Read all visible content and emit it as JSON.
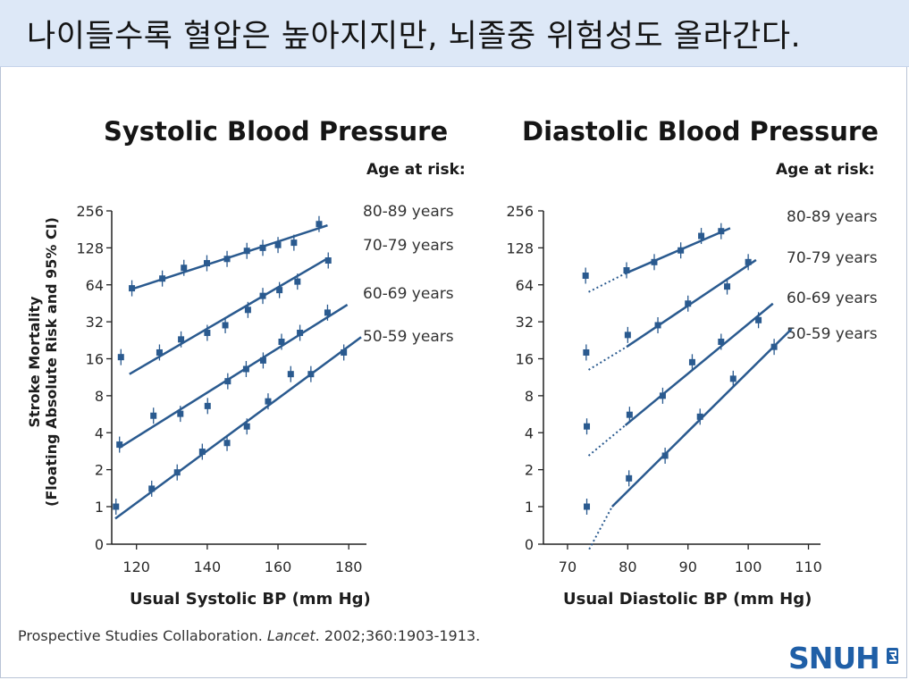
{
  "header": {
    "title": "나이들수록 혈압은 높아지지만, 뇌졸중 위험성도 올라간다."
  },
  "y_axis_label_line1": "Stroke Mortality",
  "y_axis_label_line2": "(Floating Absolute Risk and 95% CI)",
  "citation": {
    "pre": "Prospective Studies Collaboration. ",
    "journal": "Lancet",
    "post": ". 2002;360:1903-1913."
  },
  "logo": {
    "text": "SNUH"
  },
  "colors": {
    "series": "#2a5a8f",
    "header_bg": "#dde8f7"
  },
  "chart_data": [
    {
      "type": "line",
      "title": "Systolic Blood Pressure",
      "xlabel": "Usual Systolic BP (mm Hg)",
      "ylabel": "Stroke Mortality (Floating Absolute Risk and 95% CI)",
      "legend_title": "Age at risk:",
      "x_ticks": [
        120,
        140,
        160,
        180
      ],
      "xlim": [
        113,
        185
      ],
      "y_ticks": [
        0,
        1,
        2,
        4,
        8,
        16,
        32,
        64,
        128,
        256
      ],
      "y_scale": "log2",
      "series": [
        {
          "name": "80-89 years",
          "points": [
            [
              118.7,
              60
            ],
            [
              127.3,
              72
            ],
            [
              133.4,
              88
            ],
            [
              139.9,
              96
            ],
            [
              145.6,
              104
            ],
            [
              151.2,
              121
            ],
            [
              155.7,
              128
            ],
            [
              160.0,
              135
            ],
            [
              164.5,
              141
            ],
            [
              171.6,
              200
            ]
          ],
          "fit": [
            [
              118.7,
              59
            ],
            [
              174,
              195
            ]
          ]
        },
        {
          "name": "70-79 years",
          "points": [
            [
              115.6,
              16.5
            ],
            [
              126.5,
              18
            ],
            [
              132.6,
              23
            ],
            [
              140.0,
              26
            ],
            [
              145.1,
              30
            ],
            [
              151.5,
              40
            ],
            [
              155.7,
              52
            ],
            [
              160.4,
              58
            ],
            [
              165.5,
              68
            ],
            [
              174.2,
              101
            ]
          ],
          "fit": [
            [
              118,
              12
            ],
            [
              174,
              105
            ]
          ]
        },
        {
          "name": "60-69 years",
          "points": [
            [
              115.2,
              3.2
            ],
            [
              124.8,
              5.5
            ],
            [
              132.4,
              5.7
            ],
            [
              140.1,
              6.6
            ],
            [
              145.8,
              10.5
            ],
            [
              151.0,
              13.2
            ],
            [
              155.8,
              15.5
            ],
            [
              161.0,
              22
            ],
            [
              166.2,
              26
            ],
            [
              174.0,
              38
            ]
          ],
          "fit": [
            [
              115,
              3
            ],
            [
              179.6,
              44
            ]
          ]
        },
        {
          "name": "50-59 years",
          "points": [
            [
              114.2,
              1
            ],
            [
              124.3,
              1.4
            ],
            [
              131.5,
              1.9
            ],
            [
              138.6,
              2.8
            ],
            [
              145.6,
              3.3
            ],
            [
              151.2,
              4.5
            ],
            [
              157.2,
              7.2
            ],
            [
              163.6,
              12
            ],
            [
              169.3,
              12
            ],
            [
              178.6,
              18
            ]
          ],
          "fit": [
            [
              114,
              0.8
            ],
            [
              183.5,
              24
            ]
          ]
        }
      ]
    },
    {
      "type": "line",
      "title": "Diastolic Blood Pressure",
      "xlabel": "Usual Diastolic BP (mm Hg)",
      "ylabel": "Stroke Mortality (Floating Absolute Risk and 95% CI)",
      "legend_title": "Age at risk:",
      "x_ticks": [
        70,
        80,
        90,
        100,
        110
      ],
      "xlim": [
        66,
        112
      ],
      "y_ticks": [
        0,
        1,
        2,
        4,
        8,
        16,
        32,
        64,
        128,
        256
      ],
      "y_scale": "log2",
      "series": [
        {
          "name": "80-89 years",
          "points": [
            [
              73.0,
              76
            ],
            [
              79.8,
              84
            ],
            [
              84.4,
              98
            ],
            [
              88.8,
              122
            ],
            [
              92.2,
              160
            ],
            [
              95.5,
              175
            ]
          ],
          "fit": [
            [
              79.8,
              80
            ],
            [
              97,
              185
            ]
          ],
          "dotted_fit": [
            [
              73.5,
              56
            ],
            [
              79.8,
              80
            ]
          ]
        },
        {
          "name": "70-79 years",
          "points": [
            [
              73.1,
              18
            ],
            [
              80.0,
              25
            ],
            [
              85.0,
              30
            ],
            [
              90.0,
              45
            ],
            [
              96.5,
              62
            ],
            [
              100.0,
              98
            ]
          ],
          "fit": [
            [
              79.8,
              20
            ],
            [
              101.3,
              102
            ]
          ],
          "dotted_fit": [
            [
              73.5,
              13
            ],
            [
              79.8,
              20
            ]
          ]
        },
        {
          "name": "60-69 years",
          "points": [
            [
              73.2,
              4.5
            ],
            [
              80.3,
              5.6
            ],
            [
              85.8,
              8
            ],
            [
              90.7,
              15
            ],
            [
              95.5,
              22
            ],
            [
              101.7,
              33
            ]
          ],
          "fit": [
            [
              79.6,
              4.6
            ],
            [
              104.1,
              45
            ]
          ],
          "dotted_fit": [
            [
              73.5,
              2.6
            ],
            [
              79.6,
              4.6
            ]
          ]
        },
        {
          "name": "50-59 years",
          "points": [
            [
              73.2,
              1
            ],
            [
              80.2,
              1.7
            ],
            [
              86.2,
              2.6
            ],
            [
              92.0,
              5.4
            ],
            [
              97.5,
              11
            ],
            [
              104.3,
              20
            ]
          ],
          "fit": [
            [
              77.4,
              1
            ],
            [
              107.2,
              28
            ]
          ],
          "dotted_fit": [
            [
              73.6,
              0.45
            ],
            [
              77.4,
              1
            ]
          ]
        }
      ]
    }
  ]
}
